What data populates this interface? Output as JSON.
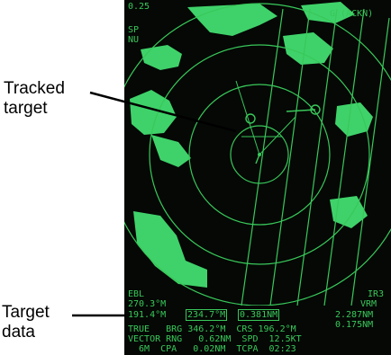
{
  "callouts": {
    "tracked_target_line1": "Tracked",
    "tracked_target_line2": "target",
    "target_data_line1": "Target",
    "target_data_line2": "data"
  },
  "radar": {
    "range_top": "0.25",
    "mode_line1": "SP",
    "mode_line2": "NU",
    "alarm_label": "G (ACKN)",
    "ebl_label": "EBL",
    "ebl_bearing": "270.3°M",
    "ebl_range": "191.4°M",
    "cursor_bearing": "234.7°M",
    "cursor_range": "0.381NM",
    "vrm_label": "VRM",
    "vrm_index": "IR3",
    "vrm_value1": "2.287NM",
    "vrm_value2": "0.175NM",
    "target_line1": "TRUE   BRG 346.2°M  CRS 196.2°M",
    "target_line2": "VECTOR RNG   0.62NM  SPD  12.5KT",
    "target_line3": "  6M  CPA   0.02NM  TCPA  02:23",
    "colors": {
      "phosphor": "#39c85a",
      "land": "#3fd26a",
      "background": "#050805"
    }
  }
}
